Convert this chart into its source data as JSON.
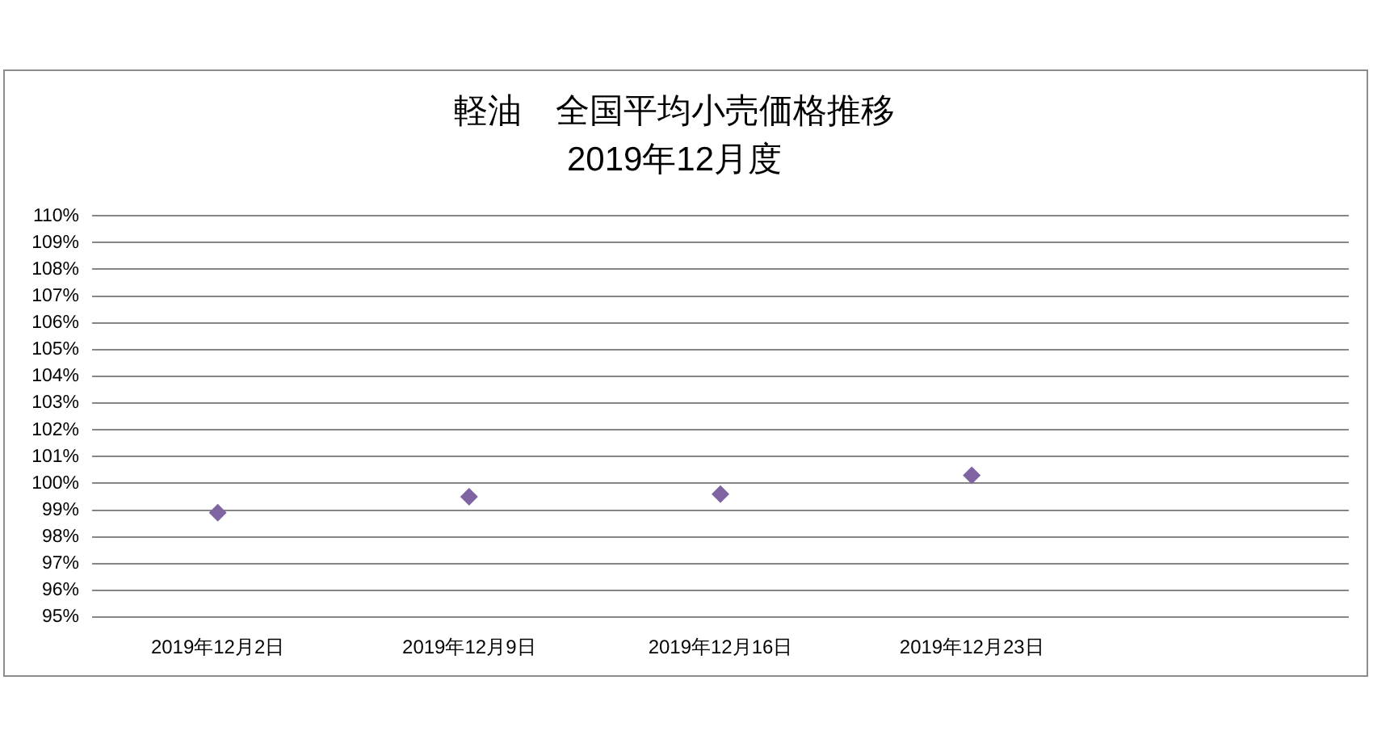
{
  "chart_data": {
    "type": "scatter",
    "title": "軽油　全国平均小売価格推移",
    "subtitle": "2019年12月度",
    "categories": [
      "2019年12月2日",
      "2019年12月9日",
      "2019年12月16日",
      "2019年12月23日",
      null
    ],
    "values": [
      98.9,
      99.5,
      99.6,
      100.3,
      null
    ],
    "color": "#8064a2",
    "marker": "diamond",
    "ylim": [
      95,
      110
    ],
    "yticks": [
      {
        "value": 95,
        "label": "95%"
      },
      {
        "value": 96,
        "label": "96%"
      },
      {
        "value": 97,
        "label": "97%"
      },
      {
        "value": 98,
        "label": "98%"
      },
      {
        "value": 99,
        "label": "99%"
      },
      {
        "value": 100,
        "label": "100%"
      },
      {
        "value": 101,
        "label": "101%"
      },
      {
        "value": 102,
        "label": "102%"
      },
      {
        "value": 103,
        "label": "103%"
      },
      {
        "value": 104,
        "label": "104%"
      },
      {
        "value": 105,
        "label": "105%"
      },
      {
        "value": 106,
        "label": "106%"
      },
      {
        "value": 107,
        "label": "107%"
      },
      {
        "value": 108,
        "label": "108%"
      },
      {
        "value": 109,
        "label": "109%"
      },
      {
        "value": 110,
        "label": "110%"
      }
    ],
    "grid": "y"
  }
}
